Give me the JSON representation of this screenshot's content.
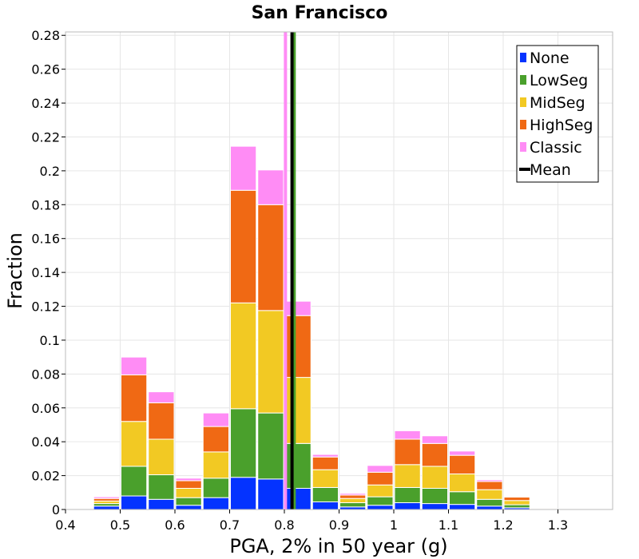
{
  "chart_data": {
    "type": "bar",
    "stacked": true,
    "title": "San Francisco",
    "xlabel": "PGA, 2% in 50 year (g)",
    "ylabel": "Fraction",
    "xlim": [
      0.4,
      1.4
    ],
    "ylim": [
      0,
      0.282
    ],
    "bin_width": 0.05,
    "xticks": [
      0.4,
      0.5,
      0.6,
      0.7,
      0.8,
      0.9,
      1.0,
      1.1,
      1.2,
      1.3
    ],
    "xtick_labels": [
      "0.4",
      "0.5",
      "0.6",
      "0.7",
      "0.8",
      "0.9",
      "1",
      "1.1",
      "1.2",
      "1.3"
    ],
    "yticks": [
      0,
      0.02,
      0.04,
      0.06,
      0.08,
      0.1,
      0.12,
      0.14,
      0.16,
      0.18,
      0.2,
      0.22,
      0.24,
      0.26,
      0.28
    ],
    "ytick_labels": [
      "0",
      "0.02",
      "0.04",
      "0.06",
      "0.08",
      "0.1",
      "0.12",
      "0.14",
      "0.16",
      "0.18",
      "0.2",
      "0.22",
      "0.24",
      "0.26",
      "0.28"
    ],
    "grid": true,
    "legend_position": "top-right",
    "bin_centers": [
      0.475,
      0.525,
      0.575,
      0.625,
      0.675,
      0.725,
      0.775,
      0.825,
      0.875,
      0.925,
      0.975,
      1.025,
      1.075,
      1.125,
      1.175,
      1.225,
      1.275,
      1.325
    ],
    "series": [
      {
        "name": "None",
        "color": "#0433ff",
        "values": [
          0.002,
          0.008,
          0.006,
          0.0025,
          0.007,
          0.019,
          0.018,
          0.0125,
          0.0045,
          0.0015,
          0.0025,
          0.004,
          0.0035,
          0.003,
          0.002,
          0.001,
          0.0003,
          0.0001
        ]
      },
      {
        "name": "LowSeg",
        "color": "#4aa02c",
        "values": [
          0.0015,
          0.0175,
          0.0145,
          0.0045,
          0.0115,
          0.0405,
          0.039,
          0.0265,
          0.0085,
          0.0025,
          0.005,
          0.009,
          0.009,
          0.0075,
          0.004,
          0.0018,
          0.0004,
          0.0001
        ]
      },
      {
        "name": "MidSeg",
        "color": "#f2c923",
        "values": [
          0.0015,
          0.0265,
          0.021,
          0.0055,
          0.0155,
          0.0625,
          0.0605,
          0.039,
          0.0105,
          0.0025,
          0.007,
          0.0135,
          0.013,
          0.0105,
          0.0057,
          0.0025,
          0.0005,
          0.0001
        ]
      },
      {
        "name": "HighSeg",
        "color": "#f06914",
        "values": [
          0.0015,
          0.0275,
          0.0215,
          0.0045,
          0.015,
          0.0665,
          0.0625,
          0.0365,
          0.0075,
          0.002,
          0.0075,
          0.015,
          0.0135,
          0.011,
          0.0048,
          0.002,
          0.0003,
          0.0001
        ]
      },
      {
        "name": "Classic",
        "color": "#ff8cf5",
        "values": [
          0.001,
          0.0105,
          0.0065,
          0.0015,
          0.008,
          0.026,
          0.0205,
          0.0085,
          0.0015,
          0.001,
          0.004,
          0.005,
          0.0045,
          0.0025,
          0.001,
          0.0005,
          0.0,
          0.0
        ]
      }
    ],
    "vertical_lines": [
      {
        "name": "Classic",
        "x": 0.802,
        "color": "#ff8cf5",
        "width": 4
      },
      {
        "name": "LowSeg",
        "x": 0.818,
        "color": "#4aa02c",
        "width": 4
      },
      {
        "name": "Mean",
        "x": 0.814,
        "color": "#000000",
        "width": 4
      }
    ],
    "legend": [
      {
        "label": "None",
        "color": "#0433ff",
        "kind": "box"
      },
      {
        "label": "LowSeg",
        "color": "#4aa02c",
        "kind": "box"
      },
      {
        "label": "MidSeg",
        "color": "#f2c923",
        "kind": "box"
      },
      {
        "label": "HighSeg",
        "color": "#f06914",
        "kind": "box"
      },
      {
        "label": "Classic",
        "color": "#ff8cf5",
        "kind": "box"
      },
      {
        "label": "Mean",
        "color": "#000000",
        "kind": "line"
      }
    ]
  }
}
